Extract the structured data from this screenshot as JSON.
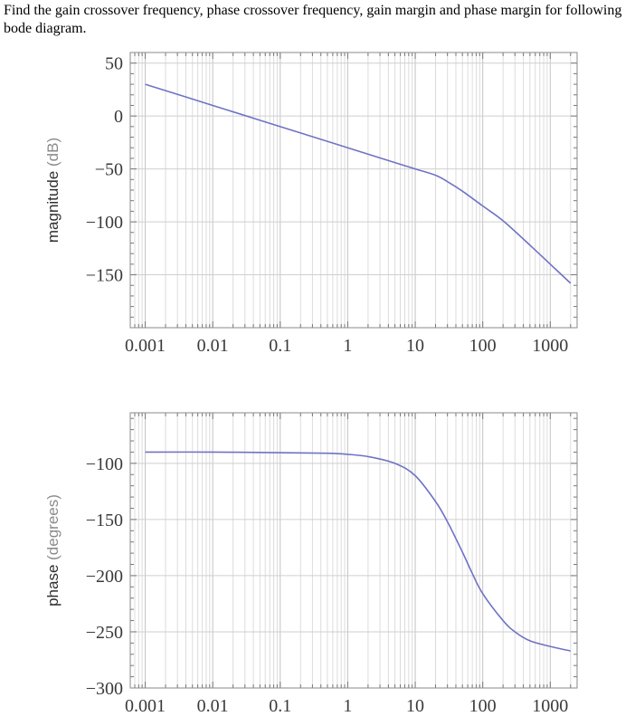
{
  "question": {
    "text": "Find the gain crossover frequency, phase crossover frequency, gain margin and phase margin for following bode diagram."
  },
  "chart_data": [
    {
      "type": "line",
      "title": "",
      "xlabel": "",
      "ylabel": "magnitude",
      "ylabel_unit": "(dB)",
      "x_scale": "log",
      "xlim": [
        0.0006,
        2500
      ],
      "ylim": [
        -200,
        60
      ],
      "x_ticks": [
        0.001,
        0.01,
        0.1,
        1,
        10,
        100,
        1000
      ],
      "x_tick_labels": [
        "0.001",
        "0.01",
        "0.1",
        "1",
        "10",
        "100",
        "1000"
      ],
      "y_ticks": [
        50,
        0,
        -50,
        -100,
        -150
      ],
      "y_tick_labels": [
        "50",
        "0",
        "-50",
        "-100",
        "-150"
      ],
      "grid": true,
      "series_color": "#6f73c4",
      "series": [
        {
          "x": [
            0.001,
            0.01,
            0.1,
            1,
            5,
            10,
            20,
            30,
            50,
            100,
            200,
            500,
            1000,
            2000
          ],
          "y": [
            30,
            10,
            -10,
            -30,
            -44,
            -50,
            -56,
            -62,
            -71,
            -85,
            -99,
            -122,
            -140,
            -158
          ]
        }
      ]
    },
    {
      "type": "line",
      "title": "",
      "xlabel": "",
      "ylabel": "phase",
      "ylabel_unit": "(degrees)",
      "x_scale": "log",
      "xlim": [
        0.0006,
        2500
      ],
      "ylim": [
        -300,
        -55
      ],
      "x_ticks": [
        0.001,
        0.01,
        0.1,
        1,
        10,
        100,
        1000
      ],
      "x_tick_labels": [
        "0.001",
        "0.01",
        "0.1",
        "1",
        "10",
        "100",
        "1000"
      ],
      "y_ticks": [
        -100,
        -150,
        -200,
        -250,
        -300
      ],
      "y_tick_labels": [
        "-100",
        "-150",
        "-200",
        "-250",
        "-300"
      ],
      "grid": true,
      "series_color": "#6f73c4",
      "series": [
        {
          "x": [
            0.001,
            0.01,
            0.1,
            0.5,
            1,
            2,
            5,
            10,
            20,
            30,
            50,
            70,
            100,
            200,
            300,
            500,
            1000,
            2000
          ],
          "y": [
            -90,
            -90,
            -90.5,
            -91,
            -92,
            -94,
            -100,
            -111,
            -134,
            -152,
            -179,
            -198,
            -216,
            -240,
            -250,
            -258,
            -263,
            -267
          ]
        }
      ]
    }
  ]
}
